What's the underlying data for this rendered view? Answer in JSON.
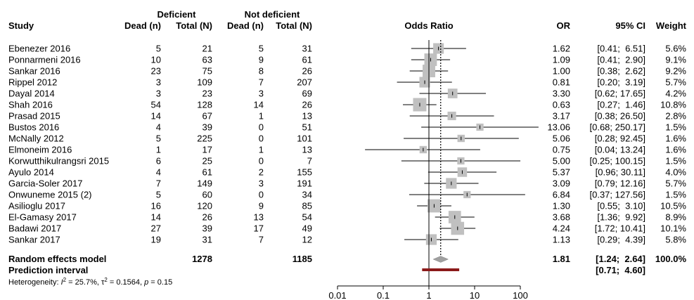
{
  "chart_data": {
    "type": "forest",
    "x_scale": "log",
    "xlim": [
      0.01,
      100
    ],
    "x_ticks": [
      "0.01",
      "0.1",
      "1",
      "10",
      "100"
    ],
    "xlabel": "Odds Ratio",
    "group_headers": {
      "deficient": "Deficient",
      "not_deficient": "Not deficient"
    },
    "columns": {
      "study": "Study",
      "dead_def": "Dead (n)",
      "total_def": "Total (N)",
      "dead_nd": "Dead (n)",
      "total_nd": "Total (N)",
      "or": "OR",
      "ci": "95% CI",
      "weight": "Weight"
    },
    "studies": [
      {
        "name": "Ebenezer 2016",
        "dead_def": "5",
        "total_def": "21",
        "dead_nd": "5",
        "total_nd": "31",
        "or": 1.62,
        "lo": 0.41,
        "hi": 6.51,
        "or_text": "1.62",
        "ci_text": "[0.41;  6.51]",
        "weight": 5.6,
        "weight_text": "5.6%"
      },
      {
        "name": "Ponnarmeni 2016",
        "dead_def": "10",
        "total_def": "63",
        "dead_nd": "9",
        "total_nd": "61",
        "or": 1.09,
        "lo": 0.41,
        "hi": 2.9,
        "or_text": "1.09",
        "ci_text": "[0.41;  2.90]",
        "weight": 9.1,
        "weight_text": "9.1%"
      },
      {
        "name": "Sankar 2016",
        "dead_def": "23",
        "total_def": "75",
        "dead_nd": "8",
        "total_nd": "26",
        "or": 1.0,
        "lo": 0.38,
        "hi": 2.62,
        "or_text": "1.00",
        "ci_text": "[0.38;  2.62]",
        "weight": 9.2,
        "weight_text": "9.2%"
      },
      {
        "name": "Rippel 2012",
        "dead_def": "3",
        "total_def": "109",
        "dead_nd": "7",
        "total_nd": "207",
        "or": 0.81,
        "lo": 0.2,
        "hi": 3.19,
        "or_text": "0.81",
        "ci_text": "[0.20;  3.19]",
        "weight": 5.7,
        "weight_text": "5.7%"
      },
      {
        "name": "Dayal 2014",
        "dead_def": "3",
        "total_def": "23",
        "dead_nd": "3",
        "total_nd": "69",
        "or": 3.3,
        "lo": 0.62,
        "hi": 17.65,
        "or_text": "3.30",
        "ci_text": "[0.62; 17.65]",
        "weight": 4.2,
        "weight_text": "4.2%"
      },
      {
        "name": "Shah 2016",
        "dead_def": "54",
        "total_def": "128",
        "dead_nd": "14",
        "total_nd": "26",
        "or": 0.63,
        "lo": 0.27,
        "hi": 1.46,
        "or_text": "0.63",
        "ci_text": "[0.27;  1.46]",
        "weight": 10.8,
        "weight_text": "10.8%"
      },
      {
        "name": "Prasad 2015",
        "dead_def": "14",
        "total_def": "67",
        "dead_nd": "1",
        "total_nd": "13",
        "or": 3.17,
        "lo": 0.38,
        "hi": 26.5,
        "or_text": "3.17",
        "ci_text": "[0.38; 26.50]",
        "weight": 2.8,
        "weight_text": "2.8%"
      },
      {
        "name": "Bustos 2016",
        "dead_def": "4",
        "total_def": "39",
        "dead_nd": "0",
        "total_nd": "51",
        "or": 13.06,
        "lo": 0.68,
        "hi": 250.17,
        "or_text": "13.06",
        "ci_text": "[0.68; 250.17]",
        "weight": 1.5,
        "weight_text": "1.5%"
      },
      {
        "name": "McNally 2012",
        "dead_def": "5",
        "total_def": "225",
        "dead_nd": "0",
        "total_nd": "101",
        "or": 5.06,
        "lo": 0.28,
        "hi": 92.45,
        "or_text": "5.06",
        "ci_text": "[0.28; 92.45]",
        "weight": 1.6,
        "weight_text": "1.6%"
      },
      {
        "name": "Elmoneim 2016",
        "dead_def": "1",
        "total_def": "17",
        "dead_nd": "1",
        "total_nd": "13",
        "or": 0.75,
        "lo": 0.04,
        "hi": 13.24,
        "or_text": "0.75",
        "ci_text": "[0.04; 13.24]",
        "weight": 1.6,
        "weight_text": "1.6%"
      },
      {
        "name": "Korwutthikulrangsri 2015",
        "dead_def": "6",
        "total_def": "25",
        "dead_nd": "0",
        "total_nd": "7",
        "or": 5.0,
        "lo": 0.25,
        "hi": 100.15,
        "or_text": "5.00",
        "ci_text": "[0.25; 100.15]",
        "weight": 1.5,
        "weight_text": "1.5%"
      },
      {
        "name": "Ayulo 2014",
        "dead_def": "4",
        "total_def": "61",
        "dead_nd": "2",
        "total_nd": "155",
        "or": 5.37,
        "lo": 0.96,
        "hi": 30.11,
        "or_text": "5.37",
        "ci_text": "[0.96; 30.11]",
        "weight": 4.0,
        "weight_text": "4.0%"
      },
      {
        "name": "Garcia-Soler 2017",
        "dead_def": "7",
        "total_def": "149",
        "dead_nd": "3",
        "total_nd": "191",
        "or": 3.09,
        "lo": 0.79,
        "hi": 12.16,
        "or_text": "3.09",
        "ci_text": "[0.79; 12.16]",
        "weight": 5.7,
        "weight_text": "5.7%"
      },
      {
        "name": "Onwuneme 2015 (2)",
        "dead_def": "5",
        "total_def": "60",
        "dead_nd": "0",
        "total_nd": "34",
        "or": 6.84,
        "lo": 0.37,
        "hi": 127.56,
        "or_text": "6.84",
        "ci_text": "[0.37; 127.56]",
        "weight": 1.5,
        "weight_text": "1.5%"
      },
      {
        "name": "Asilioglu 2017",
        "dead_def": "16",
        "total_def": "120",
        "dead_nd": "9",
        "total_nd": "85",
        "or": 1.3,
        "lo": 0.55,
        "hi": 3.1,
        "or_text": "1.30",
        "ci_text": "[0.55;  3.10]",
        "weight": 10.5,
        "weight_text": "10.5%"
      },
      {
        "name": "El-Gamasy 2017",
        "dead_def": "14",
        "total_def": "26",
        "dead_nd": "13",
        "total_nd": "54",
        "or": 3.68,
        "lo": 1.36,
        "hi": 9.92,
        "or_text": "3.68",
        "ci_text": "[1.36;  9.92]",
        "weight": 8.9,
        "weight_text": "8.9%"
      },
      {
        "name": "Badawi 2017",
        "dead_def": "27",
        "total_def": "39",
        "dead_nd": "17",
        "total_nd": "49",
        "or": 4.24,
        "lo": 1.72,
        "hi": 10.41,
        "or_text": "4.24",
        "ci_text": "[1.72; 10.41]",
        "weight": 10.1,
        "weight_text": "10.1%"
      },
      {
        "name": "Sankar 2017",
        "dead_def": "19",
        "total_def": "31",
        "dead_nd": "7",
        "total_nd": "12",
        "or": 1.13,
        "lo": 0.29,
        "hi": 4.39,
        "or_text": "1.13",
        "ci_text": "[0.29;  4.39]",
        "weight": 5.8,
        "weight_text": "5.8%"
      }
    ],
    "summary": {
      "label": "Random effects model",
      "total_def": "1278",
      "total_nd": "1185",
      "or": 1.81,
      "lo": 1.24,
      "hi": 2.64,
      "or_text": "1.81",
      "ci_text": "[1.24;  2.64]",
      "weight_text": "100.0%"
    },
    "prediction": {
      "label": "Prediction interval",
      "lo": 0.71,
      "hi": 4.6,
      "ci_text": "[0.71;  4.60]"
    },
    "heterogeneity": {
      "label": "Heterogeneity: ",
      "i2": "25.7%",
      "tau2": "0.1564",
      "p": "0.15"
    },
    "colors": {
      "square": "#c0c0c0",
      "diamond": "#a0a0a0",
      "prediction_bar": "#8b1a1a",
      "line": "#000000"
    }
  }
}
